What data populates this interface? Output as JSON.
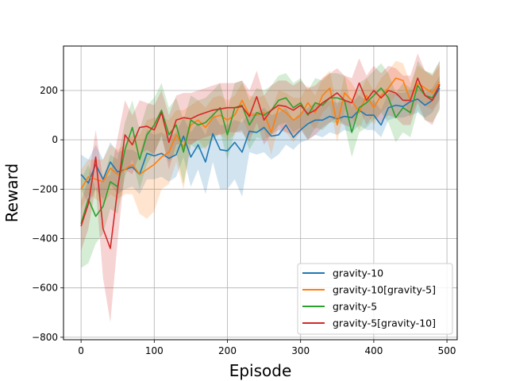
{
  "chart_data": {
    "type": "line",
    "title": "",
    "xlabel": "Episode",
    "ylabel": "Reward",
    "xlim": [
      -24,
      514
    ],
    "ylim": [
      -810,
      380
    ],
    "xticks": [
      0,
      100,
      200,
      300,
      400,
      500
    ],
    "yticks": [
      -800,
      -600,
      -400,
      -200,
      0,
      200
    ],
    "grid": true,
    "legend": "lower-right",
    "x": [
      0,
      10,
      20,
      30,
      40,
      50,
      60,
      70,
      80,
      90,
      100,
      110,
      120,
      130,
      140,
      150,
      160,
      170,
      180,
      190,
      200,
      210,
      220,
      230,
      240,
      250,
      260,
      270,
      280,
      290,
      300,
      310,
      320,
      330,
      340,
      350,
      360,
      370,
      380,
      390,
      400,
      410,
      420,
      430,
      440,
      450,
      460,
      470,
      480,
      490
    ],
    "series": [
      {
        "name": "gravity-10",
        "color": "#1f77b4",
        "values": [
          -140,
          -175,
          -100,
          -160,
          -90,
          -130,
          -120,
          -110,
          -140,
          -55,
          -65,
          -55,
          -75,
          -60,
          15,
          -70,
          -20,
          -90,
          25,
          -40,
          -45,
          -10,
          -50,
          35,
          30,
          50,
          15,
          20,
          60,
          10,
          40,
          65,
          80,
          80,
          95,
          85,
          95,
          90,
          120,
          100,
          100,
          60,
          130,
          140,
          135,
          155,
          165,
          140,
          160,
          210
        ],
        "lower": [
          -200,
          -260,
          -200,
          -240,
          -180,
          -220,
          -200,
          -190,
          -220,
          -160,
          -160,
          -150,
          -170,
          -150,
          -70,
          -190,
          -120,
          -220,
          -90,
          -200,
          -200,
          -160,
          -230,
          -50,
          -60,
          -50,
          -80,
          -60,
          -20,
          -40,
          -10,
          0,
          20,
          10,
          30,
          20,
          40,
          30,
          60,
          40,
          40,
          10,
          80,
          90,
          90,
          100,
          110,
          90,
          110,
          160
        ],
        "upper": [
          -60,
          -80,
          -20,
          -80,
          -10,
          -50,
          -40,
          -40,
          -60,
          40,
          20,
          30,
          10,
          30,
          90,
          30,
          70,
          20,
          110,
          60,
          60,
          80,
          70,
          110,
          110,
          130,
          100,
          110,
          130,
          80,
          110,
          130,
          150,
          140,
          160,
          150,
          160,
          150,
          180,
          160,
          160,
          120,
          190,
          190,
          190,
          200,
          210,
          190,
          210,
          260
        ]
      },
      {
        "name": "gravity-10[gravity-5]",
        "color": "#ff7f0e",
        "values": [
          -200,
          -150,
          -160,
          -170,
          -115,
          -140,
          -120,
          -100,
          -140,
          -120,
          -100,
          -70,
          -50,
          20,
          -30,
          60,
          80,
          50,
          90,
          100,
          80,
          100,
          160,
          100,
          100,
          110,
          30,
          130,
          110,
          80,
          100,
          150,
          110,
          180,
          210,
          60,
          190,
          160,
          110,
          180,
          130,
          180,
          210,
          250,
          240,
          160,
          230,
          210,
          190,
          235
        ],
        "lower": [
          -280,
          -220,
          -240,
          -260,
          -220,
          -240,
          -220,
          -220,
          -300,
          -320,
          -290,
          -200,
          -180,
          -90,
          -200,
          -20,
          0,
          -40,
          10,
          20,
          0,
          20,
          90,
          20,
          30,
          40,
          -60,
          60,
          30,
          -10,
          30,
          80,
          40,
          110,
          140,
          -10,
          120,
          90,
          40,
          110,
          60,
          110,
          140,
          180,
          170,
          90,
          160,
          140,
          120,
          170
        ],
        "upper": [
          -120,
          -80,
          -80,
          -80,
          -20,
          -40,
          -20,
          20,
          20,
          80,
          90,
          90,
          80,
          120,
          120,
          140,
          160,
          130,
          170,
          180,
          160,
          180,
          230,
          180,
          170,
          180,
          120,
          200,
          190,
          170,
          170,
          220,
          180,
          250,
          280,
          130,
          260,
          230,
          180,
          250,
          200,
          250,
          280,
          320,
          310,
          230,
          300,
          280,
          260,
          300
        ]
      },
      {
        "name": "gravity-5",
        "color": "#2ca02c",
        "values": [
          -340,
          -240,
          -310,
          -270,
          -170,
          -190,
          -40,
          50,
          -80,
          20,
          60,
          120,
          20,
          60,
          -50,
          80,
          60,
          70,
          100,
          130,
          20,
          130,
          140,
          60,
          110,
          100,
          120,
          160,
          170,
          130,
          150,
          100,
          150,
          140,
          170,
          170,
          160,
          30,
          130,
          150,
          180,
          210,
          170,
          90,
          130,
          110,
          220,
          180,
          170,
          220
        ],
        "lower": [
          -520,
          -500,
          -420,
          -380,
          -280,
          -300,
          -150,
          -80,
          -200,
          -100,
          -50,
          10,
          -90,
          -50,
          -180,
          -20,
          -40,
          -30,
          0,
          30,
          -80,
          30,
          40,
          -40,
          10,
          0,
          20,
          60,
          70,
          30,
          50,
          0,
          50,
          40,
          70,
          70,
          60,
          -70,
          30,
          50,
          80,
          110,
          70,
          -10,
          30,
          10,
          120,
          80,
          70,
          120
        ],
        "upper": [
          -160,
          -100,
          -200,
          -160,
          -60,
          -80,
          70,
          160,
          40,
          140,
          170,
          230,
          130,
          170,
          80,
          180,
          160,
          170,
          200,
          230,
          120,
          230,
          240,
          160,
          210,
          200,
          220,
          260,
          270,
          230,
          250,
          200,
          250,
          240,
          270,
          270,
          260,
          130,
          230,
          250,
          280,
          310,
          270,
          190,
          230,
          210,
          320,
          280,
          270,
          320
        ]
      },
      {
        "name": "gravity-5[gravity-10]",
        "color": "#d62728",
        "values": [
          -350,
          -260,
          -70,
          -360,
          -440,
          -200,
          20,
          -20,
          50,
          55,
          40,
          110,
          -10,
          80,
          90,
          85,
          100,
          110,
          120,
          125,
          130,
          130,
          135,
          95,
          175,
          80,
          120,
          140,
          135,
          120,
          140,
          105,
          120,
          150,
          170,
          190,
          160,
          150,
          230,
          160,
          200,
          170,
          200,
          190,
          160,
          160,
          250,
          180,
          160,
          225
        ],
        "lower": [
          -450,
          -360,
          -190,
          -560,
          -740,
          -410,
          -120,
          -140,
          -60,
          -40,
          -60,
          20,
          -120,
          -20,
          -10,
          -20,
          0,
          10,
          20,
          20,
          30,
          30,
          30,
          -10,
          70,
          -20,
          20,
          40,
          30,
          20,
          40,
          0,
          20,
          50,
          70,
          90,
          60,
          50,
          130,
          60,
          100,
          70,
          100,
          90,
          60,
          60,
          150,
          80,
          60,
          130
        ],
        "upper": [
          -250,
          -160,
          40,
          -160,
          -140,
          10,
          160,
          100,
          160,
          150,
          140,
          200,
          100,
          180,
          190,
          190,
          200,
          210,
          220,
          230,
          230,
          230,
          240,
          200,
          280,
          180,
          220,
          240,
          240,
          220,
          240,
          210,
          220,
          250,
          270,
          290,
          260,
          250,
          330,
          260,
          300,
          270,
          300,
          290,
          260,
          260,
          350,
          280,
          260,
          320
        ]
      }
    ]
  }
}
